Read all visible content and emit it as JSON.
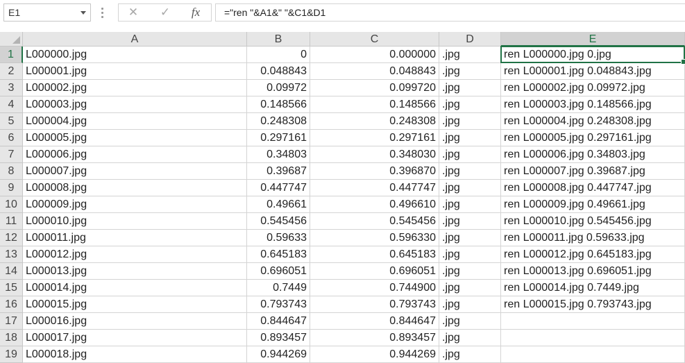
{
  "formula_bar": {
    "name_box": "E1",
    "cancel_icon": "✕",
    "enter_icon": "✓",
    "fx_label": "fx",
    "formula": "=\"ren \"&A1&\" \"&C1&D1"
  },
  "columns": [
    "A",
    "B",
    "C",
    "D",
    "E"
  ],
  "selected_cell": "E1",
  "accent_color": "#217346",
  "rows": [
    {
      "n": "1",
      "a": "L000000.jpg",
      "b": "0",
      "c": "0.000000",
      "d": ".jpg",
      "e": "ren L000000.jpg 0.jpg"
    },
    {
      "n": "2",
      "a": "L000001.jpg",
      "b": "0.048843",
      "c": "0.048843",
      "d": ".jpg",
      "e": "ren L000001.jpg 0.048843.jpg"
    },
    {
      "n": "3",
      "a": "L000002.jpg",
      "b": "0.09972",
      "c": "0.099720",
      "d": ".jpg",
      "e": "ren L000002.jpg 0.09972.jpg"
    },
    {
      "n": "4",
      "a": "L000003.jpg",
      "b": "0.148566",
      "c": "0.148566",
      "d": ".jpg",
      "e": "ren L000003.jpg 0.148566.jpg"
    },
    {
      "n": "5",
      "a": "L000004.jpg",
      "b": "0.248308",
      "c": "0.248308",
      "d": ".jpg",
      "e": "ren L000004.jpg 0.248308.jpg"
    },
    {
      "n": "6",
      "a": "L000005.jpg",
      "b": "0.297161",
      "c": "0.297161",
      "d": ".jpg",
      "e": "ren L000005.jpg 0.297161.jpg"
    },
    {
      "n": "7",
      "a": "L000006.jpg",
      "b": "0.34803",
      "c": "0.348030",
      "d": ".jpg",
      "e": "ren L000006.jpg 0.34803.jpg"
    },
    {
      "n": "8",
      "a": "L000007.jpg",
      "b": "0.39687",
      "c": "0.396870",
      "d": ".jpg",
      "e": "ren L000007.jpg 0.39687.jpg"
    },
    {
      "n": "9",
      "a": "L000008.jpg",
      "b": "0.447747",
      "c": "0.447747",
      "d": ".jpg",
      "e": "ren L000008.jpg 0.447747.jpg"
    },
    {
      "n": "10",
      "a": "L000009.jpg",
      "b": "0.49661",
      "c": "0.496610",
      "d": ".jpg",
      "e": "ren L000009.jpg 0.49661.jpg"
    },
    {
      "n": "11",
      "a": "L000010.jpg",
      "b": "0.545456",
      "c": "0.545456",
      "d": ".jpg",
      "e": "ren L000010.jpg 0.545456.jpg"
    },
    {
      "n": "12",
      "a": "L000011.jpg",
      "b": "0.59633",
      "c": "0.596330",
      "d": ".jpg",
      "e": "ren L000011.jpg 0.59633.jpg"
    },
    {
      "n": "13",
      "a": "L000012.jpg",
      "b": "0.645183",
      "c": "0.645183",
      "d": ".jpg",
      "e": "ren L000012.jpg 0.645183.jpg"
    },
    {
      "n": "14",
      "a": "L000013.jpg",
      "b": "0.696051",
      "c": "0.696051",
      "d": ".jpg",
      "e": "ren L000013.jpg 0.696051.jpg"
    },
    {
      "n": "15",
      "a": "L000014.jpg",
      "b": "0.7449",
      "c": "0.744900",
      "d": ".jpg",
      "e": "ren L000014.jpg 0.7449.jpg"
    },
    {
      "n": "16",
      "a": "L000015.jpg",
      "b": "0.793743",
      "c": "0.793743",
      "d": ".jpg",
      "e": "ren L000015.jpg 0.793743.jpg"
    },
    {
      "n": "17",
      "a": "L000016.jpg",
      "b": "0.844647",
      "c": "0.844647",
      "d": ".jpg",
      "e": ""
    },
    {
      "n": "18",
      "a": "L000017.jpg",
      "b": "0.893457",
      "c": "0.893457",
      "d": ".jpg",
      "e": ""
    },
    {
      "n": "19",
      "a": "L000018.jpg",
      "b": "0.944269",
      "c": "0.944269",
      "d": ".jpg",
      "e": ""
    }
  ]
}
